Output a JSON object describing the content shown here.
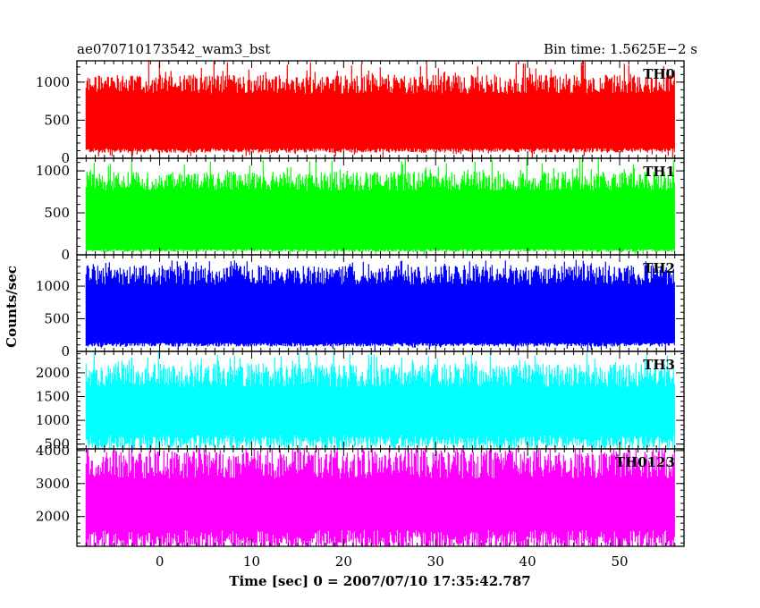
{
  "header": {
    "title": "ae070710173542_wam3_bst",
    "bin_time": "Bin time: 1.5625E−2 s"
  },
  "chart_data": {
    "type": "line",
    "title": "ae070710173542_wam3_bst",
    "xlabel": "Time [sec] 0 = 2007/07/10 17:35:42.787",
    "ylabel": "Counts/sec",
    "xlim": [
      -9,
      57
    ],
    "x_range_data": [
      -8,
      56
    ],
    "bin_width_sec": 0.015625,
    "x_ticks": [
      0,
      10,
      20,
      30,
      40,
      50
    ],
    "shared_x_axis": true,
    "grid": false,
    "panels": [
      {
        "name": "TH0",
        "color": "#ff0000",
        "ylim": [
          0,
          1280
        ],
        "y_ticks": [
          0,
          500,
          1000
        ],
        "values_summary": {
          "typical_low": 120,
          "typical_high": 1000,
          "peak": 1280
        }
      },
      {
        "name": "TH1",
        "color": "#00ff00",
        "ylim": [
          0,
          1150
        ],
        "y_ticks": [
          0,
          500,
          1000
        ],
        "values_summary": {
          "typical_low": 60,
          "typical_high": 900,
          "peak": 1150
        }
      },
      {
        "name": "TH2",
        "color": "#0000ff",
        "ylim": [
          0,
          1480
        ],
        "y_ticks": [
          0,
          500,
          1000
        ],
        "values_summary": {
          "typical_low": 120,
          "typical_high": 1200,
          "peak": 1400
        }
      },
      {
        "name": "TH3",
        "color": "#00ffff",
        "ylim": [
          400,
          2450
        ],
        "y_ticks": [
          500,
          1000,
          1500,
          2000
        ],
        "values_summary": {
          "typical_low": 620,
          "typical_high": 2000,
          "peak": 2450
        }
      },
      {
        "name": "TH0123",
        "color": "#ff00ff",
        "ylim": [
          1100,
          4050
        ],
        "y_ticks": [
          2000,
          3000,
          4000
        ],
        "values_summary": {
          "typical_low": 1450,
          "typical_high": 3700,
          "peak": 4050
        }
      }
    ]
  }
}
